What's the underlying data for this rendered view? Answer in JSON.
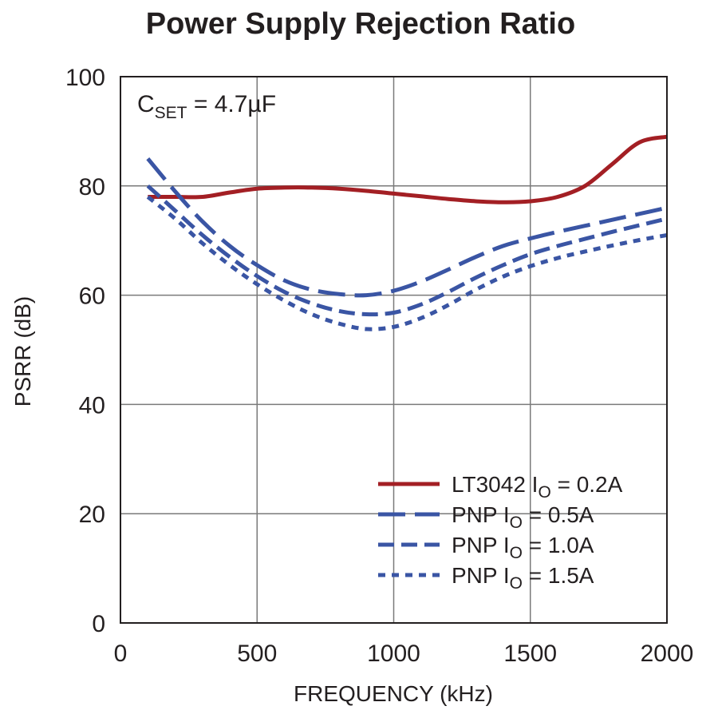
{
  "chart_data": {
    "type": "line",
    "title": "Power Supply Rejection Ratio",
    "xlabel": "FREQUENCY (kHz)",
    "ylabel": "PSRR (dB)",
    "xlim": [
      0,
      2000
    ],
    "ylim": [
      0,
      100
    ],
    "x_ticks": [
      "0",
      "500",
      "1000",
      "1500",
      "2000"
    ],
    "y_ticks": [
      "0",
      "20",
      "40",
      "60",
      "80",
      "100"
    ],
    "grid": true,
    "legend_position": "bottom-right",
    "annotation": {
      "main": "C",
      "sub": "SET",
      "rest": " = 4.7µF"
    },
    "series": [
      {
        "name": "LT3042 I",
        "name_sub": "O",
        "name_rest": " = 0.2A",
        "color": "#a31f24",
        "dash": "solid",
        "x": [
          100,
          200,
          300,
          400,
          500,
          600,
          700,
          800,
          900,
          1000,
          1100,
          1200,
          1300,
          1400,
          1500,
          1600,
          1700,
          1800,
          1900,
          2000
        ],
        "y": [
          78,
          78,
          78,
          78.8,
          79.5,
          79.7,
          79.7,
          79.5,
          79.1,
          78.6,
          78.1,
          77.6,
          77.2,
          77,
          77.2,
          78,
          80,
          84,
          88,
          89
        ]
      },
      {
        "name": "PNP I",
        "name_sub": "O",
        "name_rest": " = 0.5A",
        "color": "#3a55a4",
        "dash": "longdash",
        "x": [
          100,
          200,
          300,
          400,
          500,
          600,
          700,
          800,
          900,
          1000,
          1100,
          1200,
          1300,
          1400,
          1500,
          1600,
          1700,
          1800,
          1900,
          2000
        ],
        "y": [
          85,
          79,
          73.5,
          69,
          65.5,
          62.7,
          61,
          60.2,
          60,
          60.8,
          62.5,
          64.7,
          67,
          69,
          70.4,
          71.6,
          72.7,
          73.8,
          74.9,
          76
        ]
      },
      {
        "name": "PNP I",
        "name_sub": "O",
        "name_rest": " = 1.0A",
        "color": "#3a55a4",
        "dash": "dash",
        "x": [
          100,
          200,
          300,
          400,
          500,
          600,
          700,
          800,
          900,
          1000,
          1100,
          1200,
          1300,
          1400,
          1500,
          1600,
          1700,
          1800,
          1900,
          2000
        ],
        "y": [
          80,
          75.5,
          71,
          67,
          63.5,
          60.6,
          58.5,
          57.1,
          56.5,
          56.8,
          58.3,
          60.6,
          63.2,
          65.5,
          67.5,
          69,
          70.3,
          71.6,
          72.8,
          74
        ]
      },
      {
        "name": "PNP I",
        "name_sub": "O",
        "name_rest": " = 1.5A",
        "color": "#3a55a4",
        "dash": "dot",
        "x": [
          100,
          200,
          300,
          400,
          500,
          600,
          700,
          800,
          900,
          1000,
          1100,
          1200,
          1300,
          1400,
          1500,
          1600,
          1700,
          1800,
          1900,
          2000
        ],
        "y": [
          78,
          74,
          69.5,
          65.5,
          62,
          59,
          56.5,
          54.8,
          53.8,
          54.2,
          55.8,
          58.2,
          61,
          63.4,
          65.3,
          66.8,
          68,
          69.1,
          70.1,
          71
        ]
      }
    ]
  }
}
